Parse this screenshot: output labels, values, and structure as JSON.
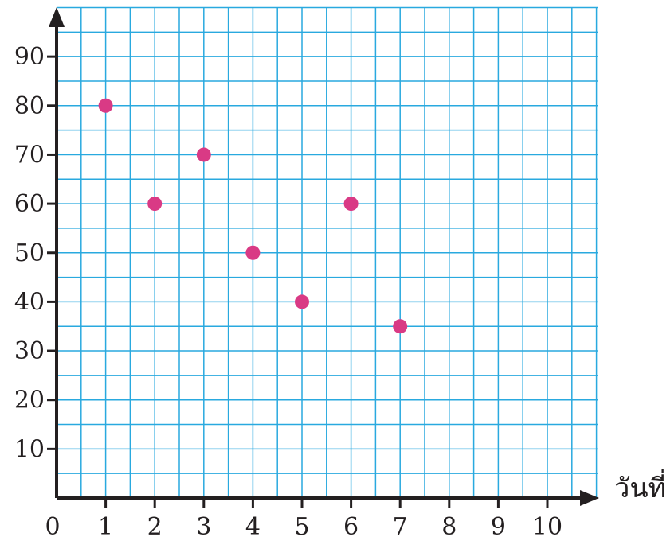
{
  "chart_data": {
    "type": "scatter",
    "title": "",
    "xlabel": "วันที่",
    "ylabel": "",
    "xlim": [
      0,
      11
    ],
    "ylim": [
      0,
      100
    ],
    "x_ticks": [
      "1",
      "2",
      "3",
      "4",
      "5",
      "6",
      "7",
      "8",
      "9",
      "10"
    ],
    "y_ticks": [
      "10",
      "20",
      "30",
      "40",
      "50",
      "60",
      "70",
      "80",
      "90"
    ],
    "origin_label": "0",
    "grid": true,
    "grid_step_x": 0.5,
    "grid_step_y": 5,
    "points": [
      {
        "x": 1,
        "y": 80
      },
      {
        "x": 2,
        "y": 60
      },
      {
        "x": 3,
        "y": 70
      },
      {
        "x": 4,
        "y": 50
      },
      {
        "x": 5,
        "y": 40
      },
      {
        "x": 6,
        "y": 60
      },
      {
        "x": 7,
        "y": 35
      }
    ],
    "colors": {
      "grid": "#29a9df",
      "axis": "#231f20",
      "point": "#d93a85"
    }
  }
}
